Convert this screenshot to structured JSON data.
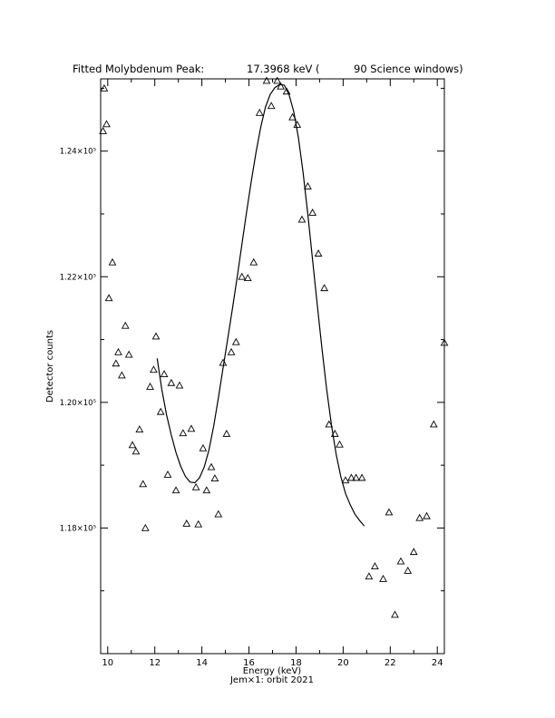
{
  "chart_data": {
    "type": "scatter",
    "title_left": "Fitted Molybdenum Peak:",
    "title_value": "17.3968 keV (",
    "title_right": "90 Science windows)",
    "xlabel": "Energy (keV)",
    "ylabel": "Detector counts",
    "caption": "Jem×1: orbit 2021",
    "xlim": [
      9.7,
      24.3
    ],
    "ylim": [
      1.16,
      1.2515
    ],
    "x_ticks": [
      10,
      12,
      14,
      16,
      18,
      20,
      22,
      24
    ],
    "y_ticks": [
      1.18,
      1.2,
      1.22,
      1.24
    ],
    "y_tick_labels": [
      "1.18×10⁵",
      "1.20×10⁵",
      "1.22×10⁵",
      "1.24×10⁵"
    ],
    "grid": false,
    "legend": "none",
    "series": [
      {
        "marker": "triangle",
        "x": [
          9.8,
          9.85,
          9.95,
          10.05,
          10.2,
          10.35,
          10.45,
          10.6,
          10.75,
          10.9,
          11.05,
          11.2,
          11.35,
          11.5,
          11.6,
          11.8,
          11.95,
          12.05,
          12.25,
          12.4,
          12.55,
          12.7,
          12.9,
          13.05,
          13.2,
          13.35,
          13.55,
          13.75,
          13.85,
          14.05,
          14.2,
          14.4,
          14.55,
          14.7,
          14.9,
          15.05,
          15.25,
          15.45,
          15.7,
          15.95,
          16.2,
          16.45,
          16.75,
          16.95,
          17.2,
          17.35,
          17.6,
          17.85,
          18.05,
          18.25,
          18.5,
          18.7,
          18.95,
          19.2,
          19.4,
          19.65,
          19.85,
          20.1,
          20.35,
          20.55,
          20.8,
          21.1,
          21.35,
          21.7,
          21.95,
          22.2,
          22.45,
          22.75,
          23.0,
          23.25,
          23.55,
          23.85,
          24.3
        ],
        "y": [
          1.2432,
          1.25,
          1.2443,
          1.2166,
          1.2223,
          1.2062,
          1.208,
          1.2043,
          1.2122,
          1.2076,
          1.1932,
          1.1922,
          1.1957,
          1.187,
          1.18,
          1.2025,
          1.2052,
          1.2105,
          1.1985,
          1.2045,
          1.1885,
          1.2031,
          1.186,
          1.2027,
          1.1951,
          1.1807,
          1.1958,
          1.1865,
          1.1806,
          1.1927,
          1.186,
          1.1897,
          1.1879,
          1.1822,
          1.2063,
          1.195,
          1.208,
          1.2096,
          1.22,
          1.2198,
          1.2223,
          1.2461,
          1.2512,
          1.2472,
          1.2512,
          1.2503,
          1.2495,
          1.2454,
          1.2442,
          1.2291,
          1.2344,
          1.2302,
          1.2237,
          1.2182,
          1.1965,
          1.195,
          1.1933,
          1.1876,
          1.188,
          1.188,
          1.188,
          1.1723,
          1.1739,
          1.1719,
          1.1825,
          1.1662,
          1.1747,
          1.1732,
          1.1762,
          1.1816,
          1.1819,
          1.1965,
          1.2095
        ]
      },
      {
        "type": "line",
        "x": [
          12.1,
          12.3,
          12.5,
          12.7,
          12.9,
          13.1,
          13.3,
          13.5,
          13.7,
          13.9,
          14.1,
          14.3,
          14.5,
          14.7,
          14.9,
          15.1,
          15.3,
          15.5,
          15.7,
          15.9,
          16.1,
          16.3,
          16.5,
          16.7,
          16.9,
          17.1,
          17.3,
          17.5,
          17.7,
          17.9,
          18.1,
          18.3,
          18.5,
          18.7,
          18.9,
          19.1,
          19.3,
          19.5,
          19.7,
          19.9,
          20.1,
          20.3,
          20.5,
          20.7,
          20.9
        ],
        "y": [
          1.207,
          1.202,
          1.198,
          1.1948,
          1.192,
          1.1898,
          1.1882,
          1.1873,
          1.1872,
          1.188,
          1.1897,
          1.1924,
          1.1962,
          1.2007,
          1.2055,
          1.2102,
          1.215,
          1.22,
          1.2252,
          1.2303,
          1.2352,
          1.2398,
          1.2438,
          1.247,
          1.249,
          1.2501,
          1.2506,
          1.2505,
          1.249,
          1.2463,
          1.2421,
          1.2366,
          1.23,
          1.2228,
          1.2156,
          1.2086,
          1.2021,
          1.1965,
          1.1918,
          1.1882,
          1.1855,
          1.1837,
          1.1822,
          1.1812,
          1.1803
        ]
      }
    ]
  }
}
